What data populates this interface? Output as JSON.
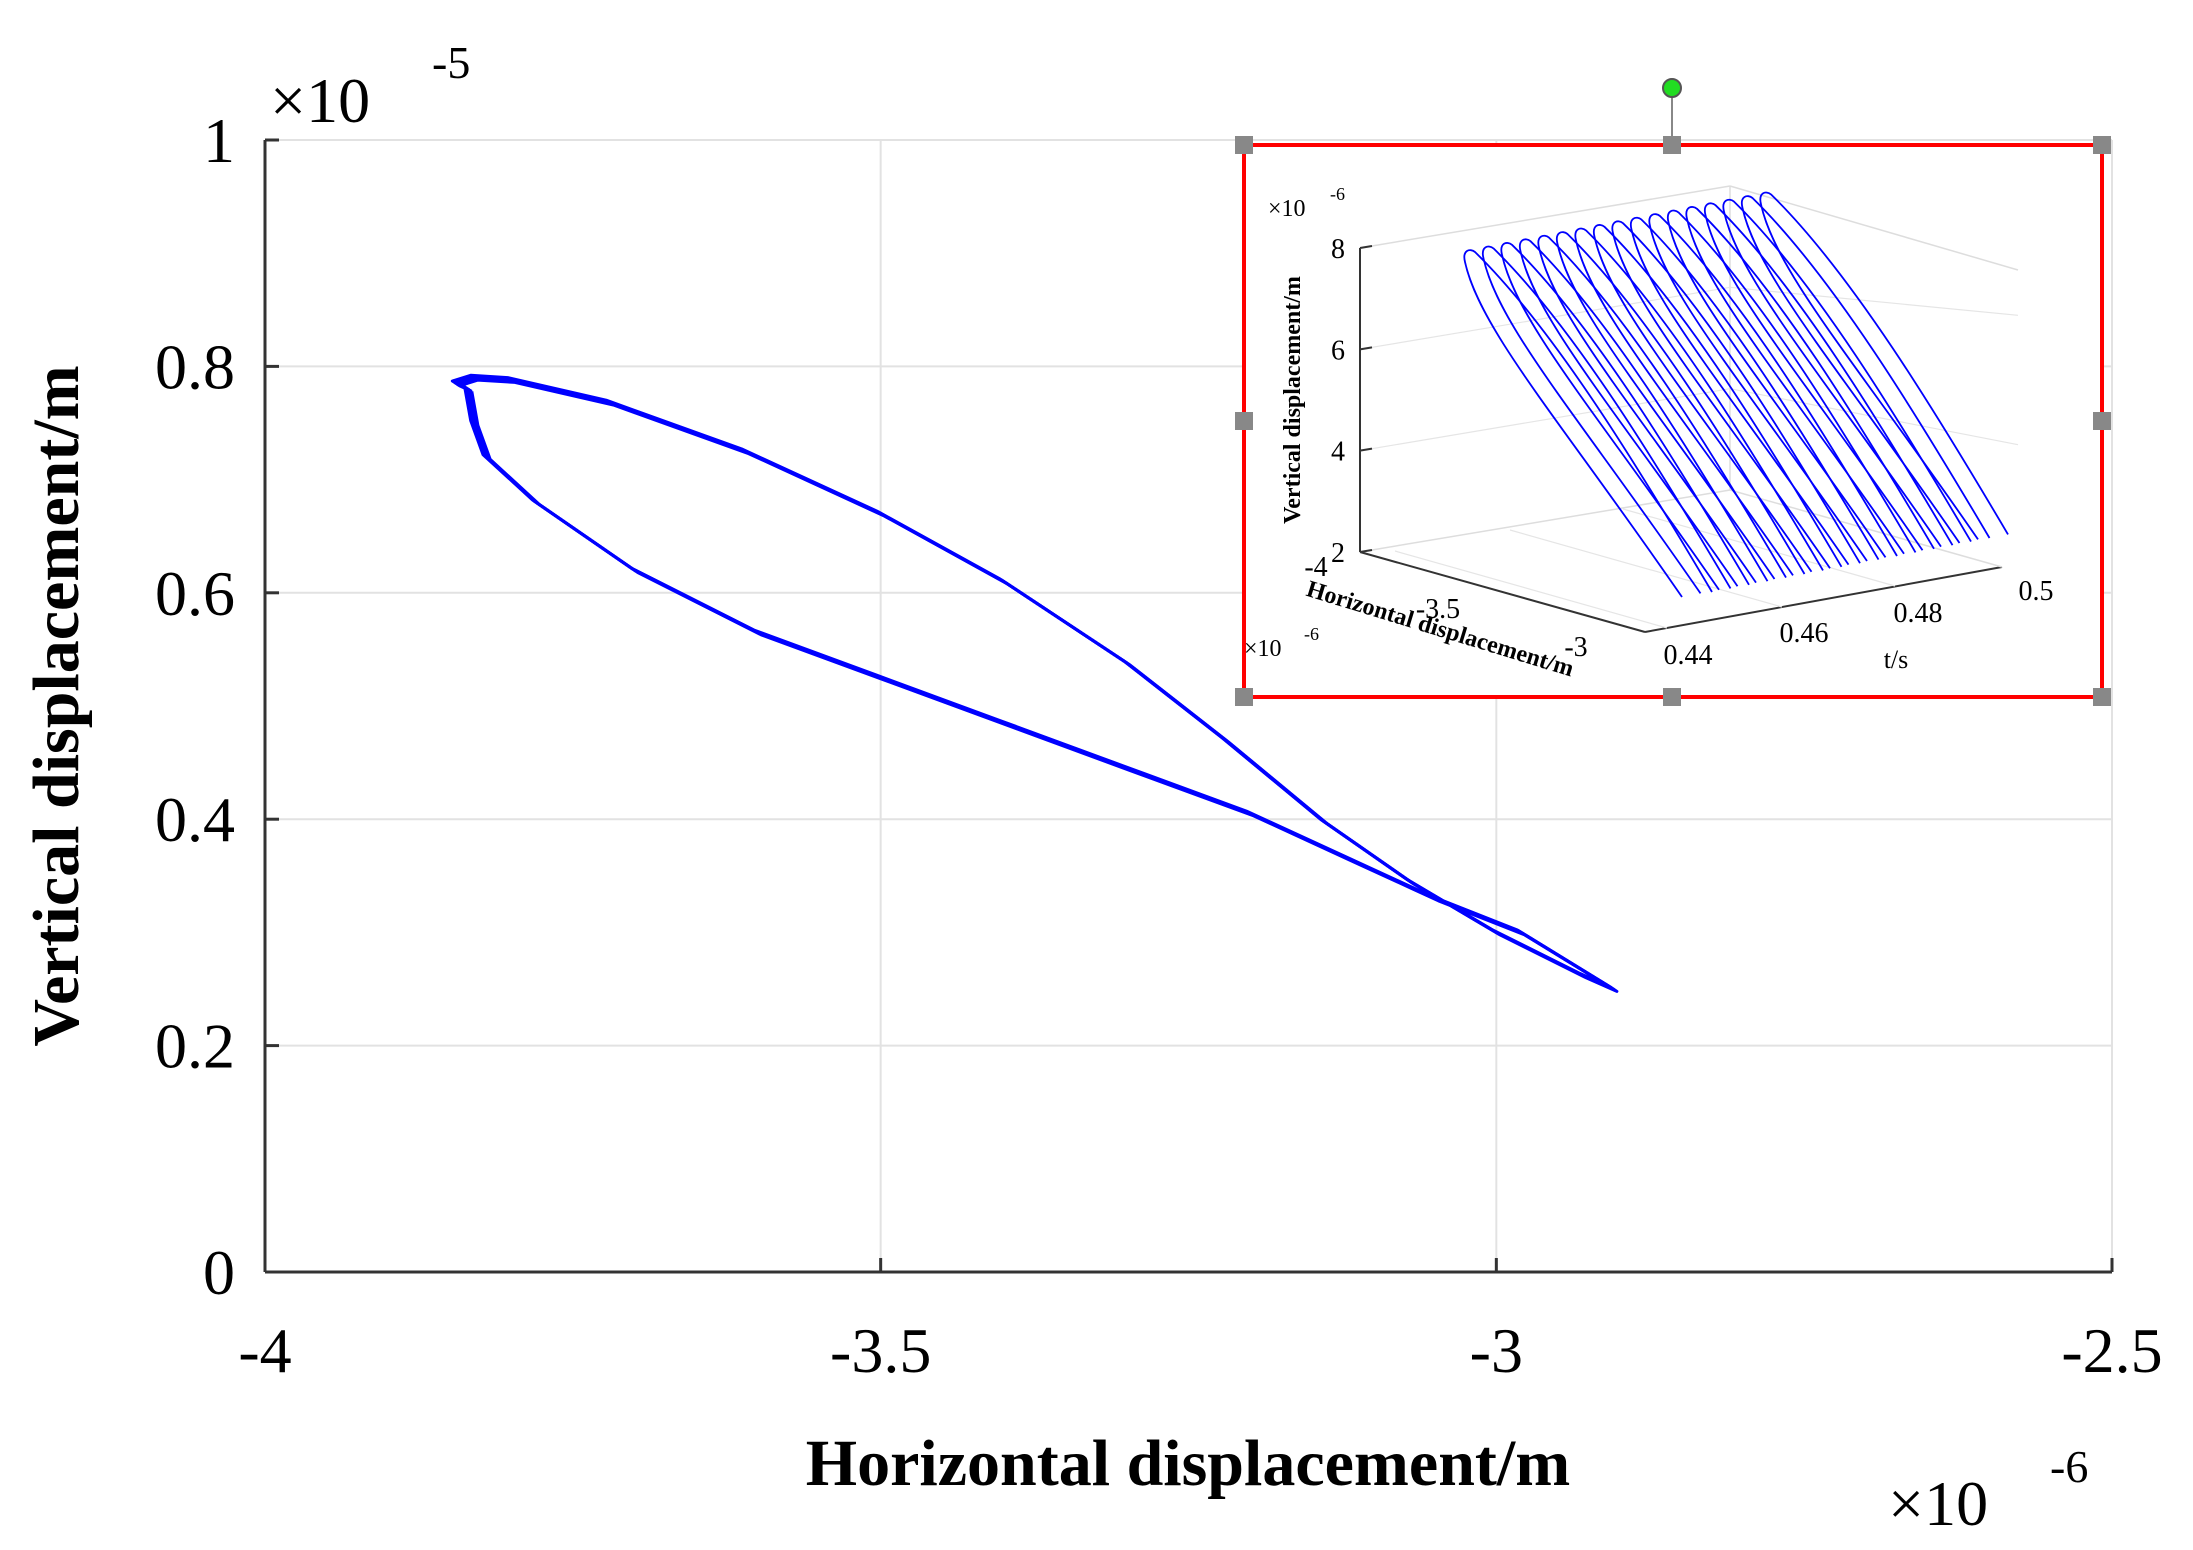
{
  "chart_data": [
    {
      "type": "line",
      "title": "",
      "xlabel": "Horizontal displacement/m",
      "ylabel": "Vertical displacement/m",
      "x_multiplier": {
        "base": "×10",
        "exp": "-6"
      },
      "y_multiplier": {
        "base": "×10",
        "exp": "-5"
      },
      "xlim": [
        -4,
        -2.5
      ],
      "ylim": [
        0,
        1
      ],
      "x_ticks": [
        -4,
        -3.5,
        -3,
        -2.5
      ],
      "x_tick_labels": [
        "-4",
        "-3.5",
        "-3",
        "-2.5"
      ],
      "y_ticks": [
        0,
        0.2,
        0.4,
        0.6,
        0.8,
        1
      ],
      "y_tick_labels": [
        "0",
        "0.2",
        "0.4",
        "0.6",
        "0.8",
        "1"
      ],
      "grid": true,
      "series_color": "#0000ff",
      "series": [
        {
          "x": [
            -3.835,
            -3.83,
            -3.82,
            -3.78,
            -3.7,
            -3.6,
            -3.5,
            -3.4,
            -3.3,
            -3.2,
            -3.12,
            -3.05,
            -2.98,
            -2.905,
            -2.93,
            -3.0,
            -3.07,
            -3.14,
            -3.22,
            -3.3,
            -3.4,
            -3.5,
            -3.61,
            -3.72,
            -3.8,
            -3.83,
            -3.845,
            -3.835
          ],
          "y": [
            0.78,
            0.75,
            0.72,
            0.68,
            0.62,
            0.565,
            0.525,
            0.485,
            0.445,
            0.405,
            0.365,
            0.33,
            0.3,
            0.25,
            0.262,
            0.3,
            0.345,
            0.398,
            0.47,
            0.538,
            0.61,
            0.67,
            0.725,
            0.768,
            0.788,
            0.79,
            0.785,
            0.78
          ]
        }
      ]
    },
    {
      "type": "line",
      "title": "",
      "xlabel": "t/s",
      "ylabel": "Vertical displacement/m",
      "zlabel": "Horizontal displacement/m",
      "y_multiplier": {
        "base": "×10",
        "exp": "-6"
      },
      "z_multiplier": {
        "base": "×10",
        "exp": "-6"
      },
      "x_tick_labels": [
        "0.44",
        "0.46",
        "0.48",
        "0.5"
      ],
      "y_tick_labels": [
        "2",
        "4",
        "6",
        "8"
      ],
      "z_tick_labels": [
        "-4",
        "-3.5",
        "-3"
      ],
      "grid": true,
      "cycles": 17,
      "series_color": "#0000ff"
    }
  ]
}
